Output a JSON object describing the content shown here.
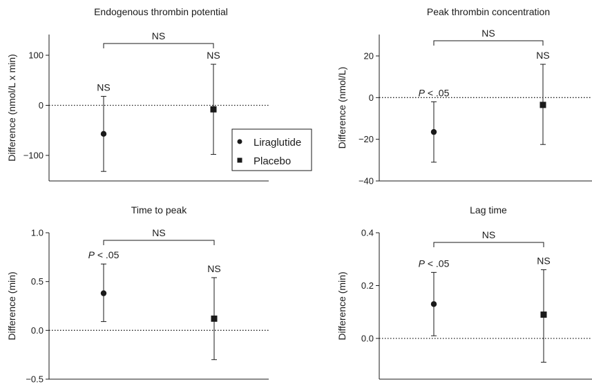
{
  "chart_data": [
    {
      "type": "scatter",
      "title": "Endogenous thrombin potential",
      "ylabel": "Difference (nmol/L x min)",
      "ylim": [
        -150,
        140
      ],
      "yticks": [
        {
          "value": 100,
          "label": "100"
        },
        {
          "value": 0,
          "label": "0"
        },
        {
          "value": -100,
          "label": "−100"
        }
      ],
      "reference_line": 0,
      "series": [
        {
          "name": "Liraglutide",
          "marker": "circle",
          "x_position": 1,
          "mean": -57,
          "lower": -132,
          "upper": 18,
          "annotation": "NS",
          "annotation_italic_p": false
        },
        {
          "name": "Placebo",
          "marker": "square",
          "x_position": 2,
          "mean": -8,
          "lower": -98,
          "upper": 82,
          "annotation": "NS",
          "annotation_italic_p": false
        }
      ],
      "bracket_label": "NS"
    },
    {
      "type": "scatter",
      "title": "Peak thrombin concentration",
      "ylabel": "Difference (nmol/L)",
      "ylim": [
        -40,
        30
      ],
      "yticks": [
        {
          "value": 20,
          "label": "20"
        },
        {
          "value": 0,
          "label": "0"
        },
        {
          "value": -20,
          "label": "−20"
        },
        {
          "value": -40,
          "label": "−40"
        }
      ],
      "reference_line": 0,
      "series": [
        {
          "name": "Liraglutide",
          "marker": "circle",
          "x_position": 1,
          "mean": -16.5,
          "lower": -31,
          "upper": -2,
          "annotation": "< .05",
          "annotation_italic_p": true
        },
        {
          "name": "Placebo",
          "marker": "square",
          "x_position": 2,
          "mean": -3.5,
          "lower": -22.5,
          "upper": 16,
          "annotation": "NS",
          "annotation_italic_p": false
        }
      ],
      "bracket_label": "NS"
    },
    {
      "type": "scatter",
      "title": "Time to peak",
      "ylabel": "Difference (min)",
      "ylim": [
        -0.5,
        1.0
      ],
      "yticks": [
        {
          "value": 1.0,
          "label": "1.0"
        },
        {
          "value": 0.5,
          "label": "0.5"
        },
        {
          "value": 0.0,
          "label": "0.0"
        },
        {
          "value": -0.5,
          "label": "−0.5"
        }
      ],
      "reference_line": 0,
      "series": [
        {
          "name": "Liraglutide",
          "marker": "circle",
          "x_position": 1,
          "mean": 0.38,
          "lower": 0.09,
          "upper": 0.68,
          "annotation": "< .05",
          "annotation_italic_p": true
        },
        {
          "name": "Placebo",
          "marker": "square",
          "x_position": 2,
          "mean": 0.12,
          "lower": -0.3,
          "upper": 0.54,
          "annotation": "NS",
          "annotation_italic_p": false
        }
      ],
      "bracket_label": "NS"
    },
    {
      "type": "scatter",
      "title": "Lag time",
      "ylabel": "Difference (min)",
      "ylim": [
        -0.15,
        0.4
      ],
      "yticks": [
        {
          "value": 0.4,
          "label": "0.4"
        },
        {
          "value": 0.2,
          "label": "0.2"
        },
        {
          "value": 0.0,
          "label": "0.0"
        }
      ],
      "reference_line": 0,
      "series": [
        {
          "name": "Liraglutide",
          "marker": "circle",
          "x_position": 1,
          "mean": 0.13,
          "lower": 0.01,
          "upper": 0.25,
          "annotation": "< .05",
          "annotation_italic_p": true
        },
        {
          "name": "Placebo",
          "marker": "square",
          "x_position": 2,
          "mean": 0.09,
          "lower": -0.09,
          "upper": 0.26,
          "annotation": "NS",
          "annotation_italic_p": false
        }
      ],
      "bracket_label": "NS"
    }
  ],
  "legend": {
    "placement": "center",
    "items": [
      {
        "label": "Liraglutide",
        "marker": "circle"
      },
      {
        "label": "Placebo",
        "marker": "square"
      }
    ]
  },
  "p_letter": "P",
  "colors": {
    "ink": "#1a1a1a",
    "background": "#ffffff"
  }
}
